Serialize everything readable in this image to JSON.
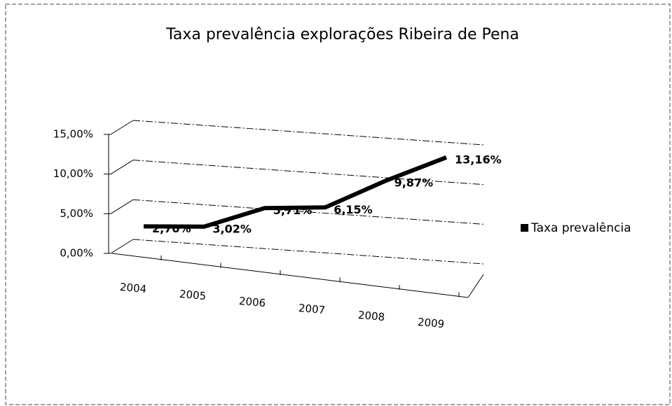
{
  "chart_data": {
    "type": "line",
    "title": "Taxa prevalência explorações Ribeira de Pena",
    "categories": [
      "2004",
      "2005",
      "2006",
      "2007",
      "2008",
      "2009"
    ],
    "series": [
      {
        "name": "Taxa prevalência",
        "color": "#000000",
        "values": [
          2.7,
          3.02,
          5.71,
          6.15,
          9.87,
          13.16
        ],
        "value_labels": [
          "2,70%",
          "3,02%",
          "5,71%",
          "6,15%",
          "9,87%",
          "13,16%"
        ]
      }
    ],
    "ylim": [
      0,
      15
    ],
    "yticks": [
      {
        "value": 0,
        "label": "0,00%"
      },
      {
        "value": 5,
        "label": "5,00%"
      },
      {
        "value": 10,
        "label": "10,00%"
      },
      {
        "value": 15,
        "label": "15,00%"
      }
    ],
    "grid": true,
    "legend": "right"
  }
}
